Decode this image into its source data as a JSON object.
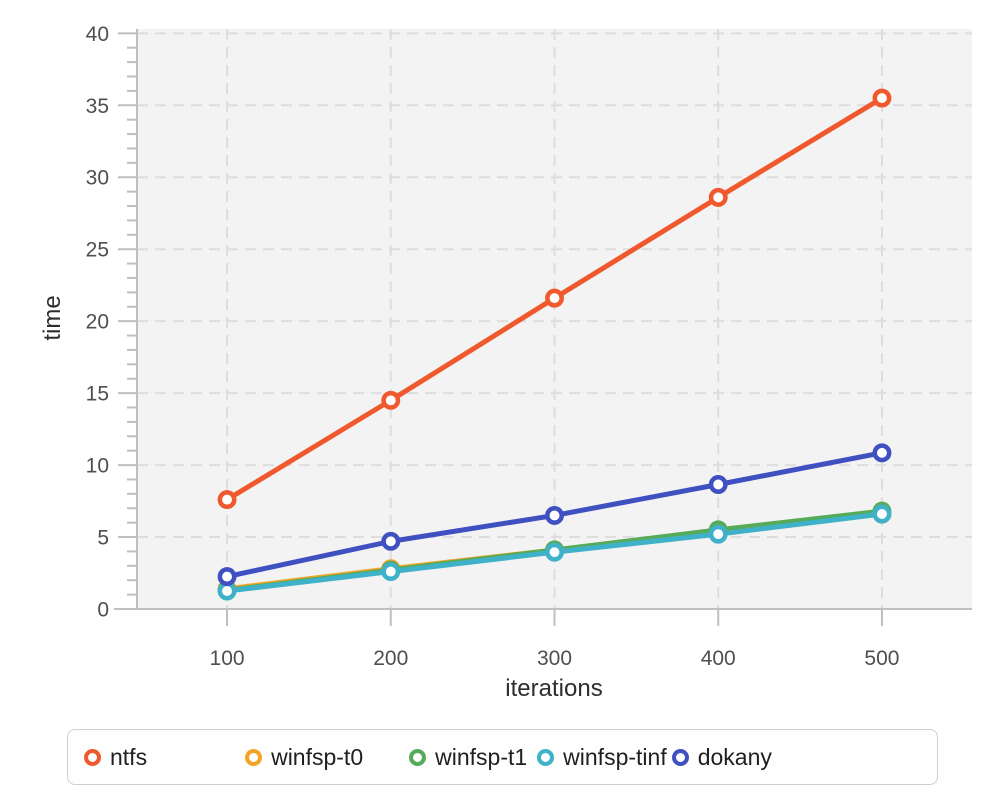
{
  "chart_data": {
    "type": "line",
    "title": "",
    "xlabel": "iterations",
    "ylabel": "time",
    "x": [
      100,
      200,
      300,
      400,
      500
    ],
    "series": [
      {
        "name": "ntfs",
        "color": "#f0592d",
        "values": [
          7.6,
          14.5,
          21.6,
          28.6,
          35.5
        ]
      },
      {
        "name": "winfsp-t0",
        "color": "#f3a428",
        "values": [
          1.4,
          2.8,
          4.1,
          5.3,
          6.6
        ]
      },
      {
        "name": "winfsp-t1",
        "color": "#55ab57",
        "values": [
          1.3,
          2.7,
          4.1,
          5.5,
          6.8
        ]
      },
      {
        "name": "winfsp-tinf",
        "color": "#3fb1c8",
        "values": [
          1.25,
          2.6,
          3.95,
          5.2,
          6.6
        ]
      },
      {
        "name": "dokany",
        "color": "#3f51c1",
        "values": [
          2.25,
          4.7,
          6.5,
          8.65,
          10.85
        ]
      }
    ],
    "xticks": [
      100,
      200,
      300,
      400,
      500
    ],
    "yticks": [
      0,
      5,
      10,
      15,
      20,
      25,
      30,
      35,
      40
    ],
    "y_minor_step": 1,
    "x_domain": [
      45,
      555
    ],
    "y_domain": [
      0,
      40.3
    ],
    "grid": "dashed",
    "legend_position": "bottom",
    "marker": "open-circle",
    "colors": {
      "plot_bg": "#f3f3f3",
      "grid": "#dddddd",
      "axis": "#bfbfbf",
      "tick_label": "#4f4f4f",
      "axis_title": "#2d2d2d"
    }
  }
}
